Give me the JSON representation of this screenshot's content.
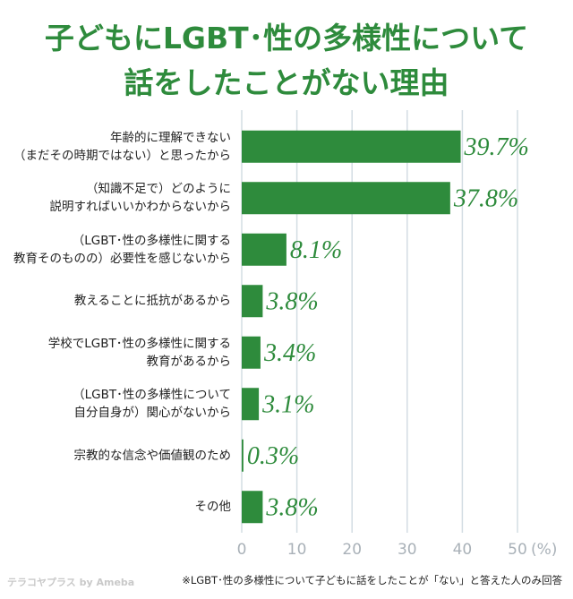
{
  "chart_data": {
    "type": "bar",
    "orientation": "horizontal",
    "title": "子どもにLGBT･性の多様性について\n話をしたことがない理由",
    "categories": [
      "年齢的に理解できない\n（まだその時期ではない）と思ったから",
      "（知識不足で）どのように\n説明すればいいかわからないから",
      "（LGBT･性の多様性に関する\n教育そのものの）必要性を感じないから",
      "教えることに抵抗があるから",
      "学校でLGBT･性の多様性に関する\n教育があるから",
      "（LGBT･性の多様性について\n自分自身が）関心がないから",
      "宗教的な信念や価値観のため",
      "その他"
    ],
    "values": [
      39.7,
      37.8,
      8.1,
      3.8,
      3.4,
      3.1,
      0.3,
      3.8
    ],
    "value_labels": [
      "39.7%",
      "37.8%",
      "8.1%",
      "3.8%",
      "3.4%",
      "3.1%",
      "0.3%",
      "3.8%"
    ],
    "color": "#2e8b3c",
    "xlim": [
      0,
      50
    ],
    "xticks": [
      0,
      10,
      20,
      30,
      40,
      50
    ],
    "xlabel": "(%)",
    "grid": true,
    "footnote": "※LGBT･性の多様性について子どもに話をしたことが「ない」と答えた人のみ回答",
    "logo": "テラコヤプラス by Ameba"
  }
}
